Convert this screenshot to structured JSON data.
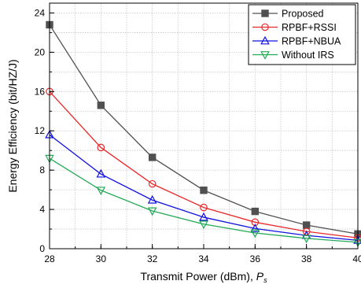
{
  "chart_data": {
    "type": "line",
    "xlabel": "Transmit Power (dBm), ",
    "xlabel_symbol": "P",
    "xlabel_subscript": "s",
    "ylabel": "Energy Efficiency (bit/HZ/J)",
    "x": [
      28,
      30,
      32,
      34,
      36,
      38,
      40
    ],
    "xlim": [
      28,
      40
    ],
    "ylim": [
      0,
      25
    ],
    "xticks": [
      "28",
      "30",
      "32",
      "34",
      "36",
      "38",
      "40"
    ],
    "yticks": [
      "0",
      "4",
      "8",
      "12",
      "16",
      "20",
      "24"
    ],
    "grid": true,
    "legend_position": "top-right",
    "series": [
      {
        "name": "Proposed",
        "color": "#505050",
        "marker": "square",
        "values": [
          22.8,
          14.6,
          9.3,
          5.95,
          3.8,
          2.4,
          1.5
        ]
      },
      {
        "name": "RPBF+RSSI",
        "color": "#e8292b",
        "marker": "circle",
        "values": [
          16.0,
          10.3,
          6.6,
          4.2,
          2.7,
          1.75,
          1.1
        ]
      },
      {
        "name": "RPBF+NBUA",
        "color": "#1010e0",
        "marker": "triangle-up",
        "values": [
          11.6,
          7.6,
          4.95,
          3.2,
          2.05,
          1.35,
          0.85
        ]
      },
      {
        "name": "Without IRS",
        "color": "#22aa55",
        "marker": "triangle-down",
        "values": [
          9.2,
          5.95,
          3.85,
          2.5,
          1.6,
          1.05,
          0.65
        ]
      }
    ]
  }
}
